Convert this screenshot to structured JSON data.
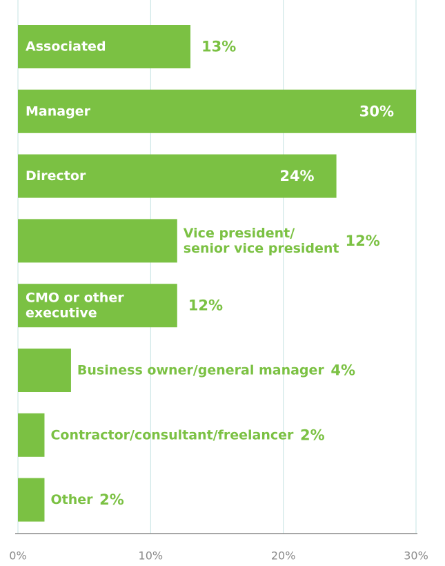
{
  "chart_data": {
    "type": "bar",
    "orientation": "horizontal",
    "categories": [
      "Associated",
      "Manager",
      "Director",
      "Vice president/\nsenior vice president",
      "CMO or other\nexecutive",
      "Business owner/general manager",
      "Contractor/consultant/freelancer",
      "Other"
    ],
    "values": [
      13,
      30,
      24,
      12,
      12,
      4,
      2,
      2
    ],
    "value_labels": [
      "13%",
      "30%",
      "24%",
      "12%",
      "12%",
      "4%",
      "2%",
      "2%"
    ],
    "color": "#7bc143",
    "xlim": [
      0,
      30
    ],
    "xticks": [
      {
        "value": 0,
        "label": "0%"
      },
      {
        "value": 10,
        "label": "10%"
      },
      {
        "value": 20,
        "label": "20%"
      },
      {
        "value": 30,
        "label": "30%"
      }
    ],
    "grid": true
  }
}
